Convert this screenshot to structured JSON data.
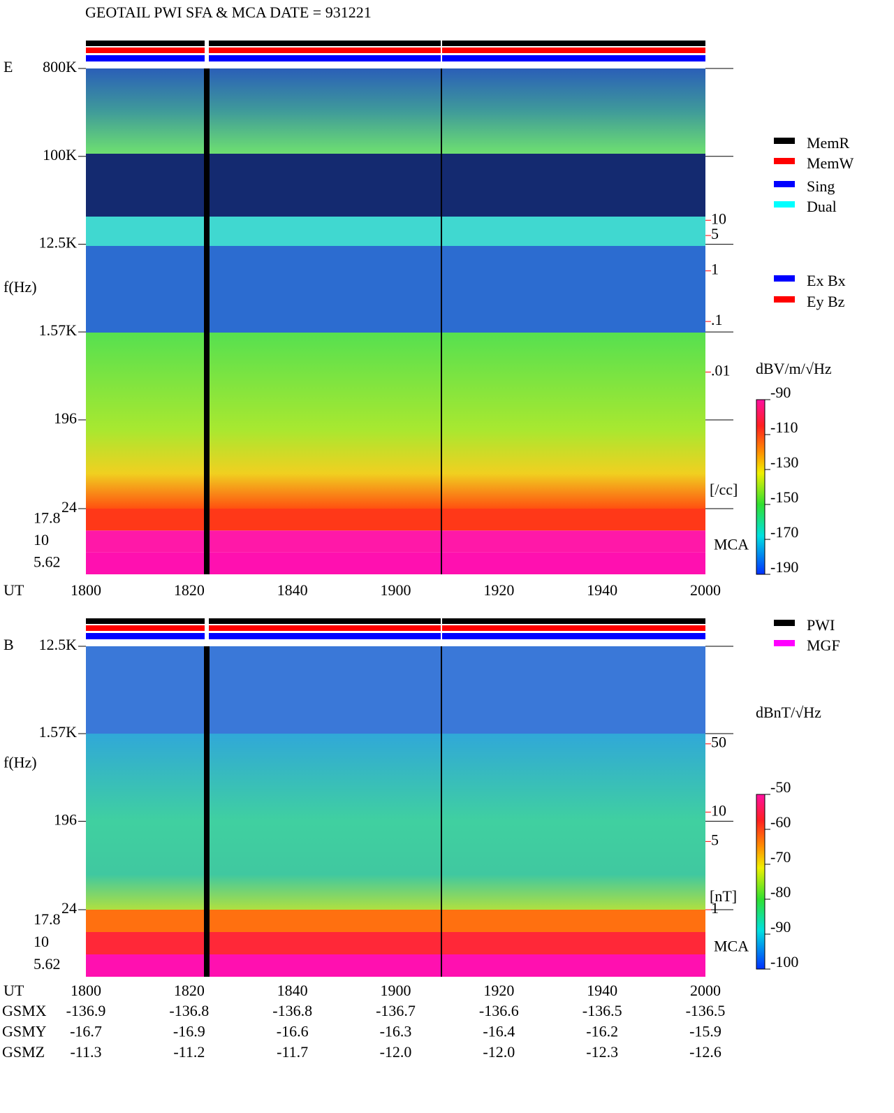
{
  "header": {
    "title": "GEOTAIL  PWI SFA & MCA   DATE = 931221"
  },
  "chart_data": [
    {
      "type": "spectrogram",
      "panel_label": "E",
      "y_label": "f(Hz)",
      "x_label": "UT",
      "ylog": true,
      "ylim": [
        24,
        800000
      ],
      "yticks": [
        {
          "value": 800000,
          "label": "800K"
        },
        {
          "value": 100000,
          "label": "100K"
        },
        {
          "value": 12500,
          "label": "12.5K"
        },
        {
          "value": 1570,
          "label": "1.57K"
        },
        196,
        24
      ],
      "mca_label": "MCA",
      "mca_channels": [
        17.8,
        10,
        5.62
      ],
      "categories": [
        "1800",
        "1820",
        "1840",
        "1900",
        "1920",
        "1940",
        "2000"
      ],
      "y2log": true,
      "y2lim": [
        2e-05,
        10000
      ],
      "y2ticks": [
        10,
        5,
        1,
        {
          "value": 0.1,
          "label": ".1"
        },
        {
          "value": 0.01,
          "label": ".01"
        }
      ],
      "y2_unit": "[/cc]",
      "colorbar": {
        "label": "dBV/m/√Hz",
        "lim": [
          -190,
          -90
        ],
        "ticks": [
          -90,
          -110,
          -130,
          -150,
          -170,
          -190
        ]
      },
      "status_legend": [
        {
          "name": "MemR",
          "color": "#000000"
        },
        {
          "name": "MemW",
          "color": "#ff0000"
        },
        {
          "name": "Sing",
          "color": "#0000ff"
        },
        {
          "name": "Dual",
          "color": "#00ffff"
        }
      ],
      "component_legend": [
        {
          "name": "Ex Bx",
          "color": "#0000ff"
        },
        {
          "name": "Ey Bz",
          "color": "#ff0000"
        }
      ]
    },
    {
      "type": "spectrogram",
      "panel_label": "B",
      "y_label": "f(Hz)",
      "x_label": "UT",
      "ylog": true,
      "ylim": [
        24,
        12500
      ],
      "yticks": [
        {
          "value": 12500,
          "label": "12.5K"
        },
        {
          "value": 1570,
          "label": "1.57K"
        },
        196,
        24
      ],
      "mca_label": "MCA",
      "mca_channels": [
        17.8,
        10,
        5.62
      ],
      "categories": [
        "1800",
        "1820",
        "1840",
        "1900",
        "1920",
        "1940",
        "2000"
      ],
      "y2log": true,
      "y2lim": [
        1,
        500
      ],
      "y2ticks": [
        50,
        10,
        5,
        1
      ],
      "y2_unit": "[nT]",
      "colorbar": {
        "label": "dBnT/√Hz",
        "lim": [
          -100,
          -50
        ],
        "ticks": [
          -50,
          -60,
          -70,
          -80,
          -90,
          -100
        ]
      },
      "status_legend": [
        {
          "name": "PWI",
          "color": "#000000"
        },
        {
          "name": "MGF",
          "color": "#ff00ff"
        }
      ]
    }
  ],
  "ephemeris": {
    "rows": [
      {
        "label": "GSMX",
        "values": [
          "-136.9",
          "-136.8",
          "-136.8",
          "-136.7",
          "-136.6",
          "-136.5",
          "-136.5"
        ]
      },
      {
        "label": "GSMY",
        "values": [
          "-16.7",
          "-16.9",
          "-16.6",
          "-16.3",
          "-16.4",
          "-16.2",
          "-15.9"
        ]
      },
      {
        "label": "GSMZ",
        "values": [
          "-11.3",
          "-11.2",
          "-11.7",
          "-12.0",
          "-12.0",
          "-12.3",
          "-12.6"
        ]
      }
    ]
  }
}
